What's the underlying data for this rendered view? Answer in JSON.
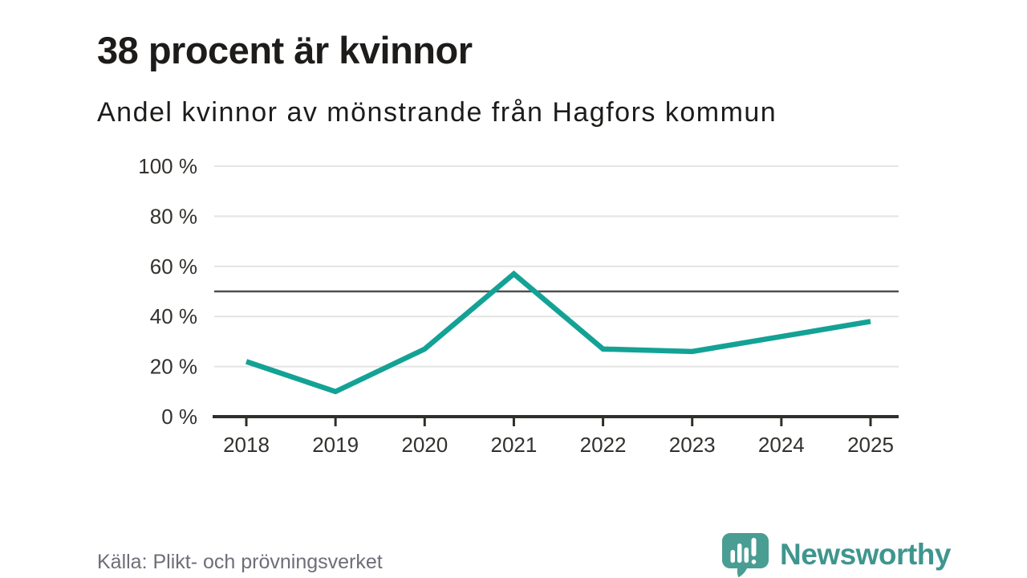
{
  "header": {
    "title": "38 procent är kvinnor",
    "subtitle": "Andel kvinnor av mönstrande från Hagfors kommun"
  },
  "chart_data": {
    "type": "line",
    "title": "38 procent är kvinnor",
    "subtitle": "Andel kvinnor av mönstrande från Hagfors kommun",
    "categories": [
      "2018",
      "2019",
      "2020",
      "2021",
      "2022",
      "2023",
      "2024",
      "2025"
    ],
    "series": [
      {
        "name": "Andel kvinnor av mönstrande",
        "values": [
          22,
          10,
          27,
          57,
          27,
          26,
          32,
          38
        ]
      }
    ],
    "unit": "%",
    "ylim": [
      0,
      100
    ],
    "y_ticks": [
      0,
      20,
      40,
      60,
      80,
      100
    ],
    "y_tick_labels": [
      "0 %",
      "20 %",
      "40 %",
      "60 %",
      "80 %",
      "100 %"
    ],
    "reference_line": 50,
    "grid": "horizontal",
    "legend": "none",
    "line_color": "#13a295",
    "reference_line_color": "#4f4f4f",
    "gridline_color": "#e4e4e4",
    "axis_color": "#2f2e2b"
  },
  "footer": {
    "source": "Källa: Plikt- och prövningsverket",
    "brand_name": "Newsworthy",
    "brand_color": "#3e968e",
    "logo_bubble_color": "#4a9d93"
  }
}
